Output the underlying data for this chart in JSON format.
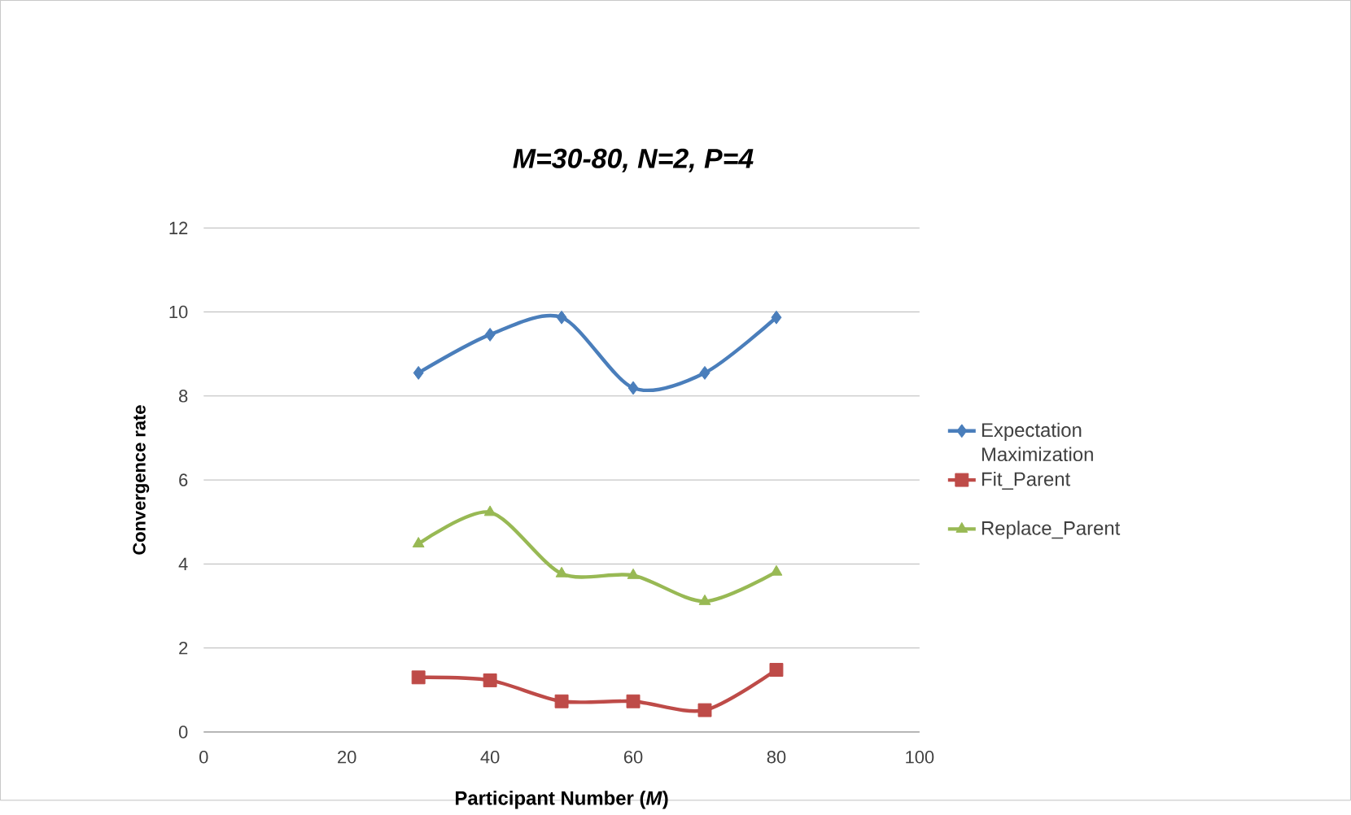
{
  "chart_data": {
    "type": "line",
    "title": "*M*=30-80, *N*=2, *P*=4",
    "xlabel": "Participant Number (*M*)",
    "ylabel": "Convergence rate",
    "x": [
      30,
      40,
      50,
      60,
      70,
      80
    ],
    "series": [
      {
        "name": "Expectation Maximization",
        "color": "#4a7ebb",
        "marker": "diamond",
        "values": [
          8.55,
          9.46,
          9.87,
          8.19,
          8.55,
          9.87
        ]
      },
      {
        "name": "Fit_Parent",
        "color": "#be4b48",
        "marker": "square",
        "values": [
          1.3,
          1.23,
          0.73,
          0.73,
          0.52,
          1.48
        ]
      },
      {
        "name": "Replace_Parent",
        "color": "#98b954",
        "marker": "triangle",
        "values": [
          4.48,
          5.23,
          3.77,
          3.73,
          3.11,
          3.81
        ]
      }
    ],
    "xlim": [
      0,
      100
    ],
    "xticks": [
      0,
      20,
      40,
      60,
      80,
      100
    ],
    "ylim": [
      0,
      12
    ],
    "yticks": [
      0,
      2,
      4,
      6,
      8,
      10,
      12
    ],
    "grid": "y",
    "legend": "right"
  }
}
